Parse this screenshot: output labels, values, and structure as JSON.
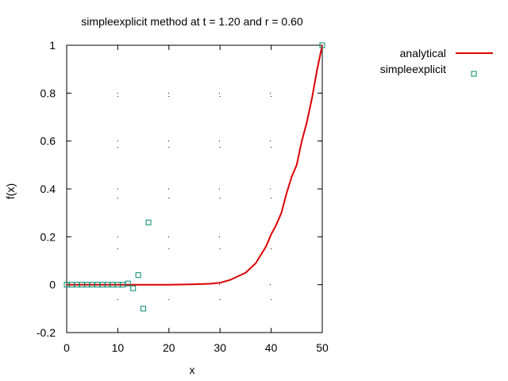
{
  "chart_data": {
    "type": "line",
    "title": "simpleexplicit method at t = 1.20 and r = 0.60",
    "xlabel": "x",
    "ylabel": "f(x)",
    "xlim": [
      0,
      50
    ],
    "ylim": [
      -0.2,
      1
    ],
    "xticks": [
      0,
      10,
      20,
      30,
      40,
      50
    ],
    "yticks": [
      -0.2,
      0,
      0.2,
      0.4,
      0.6,
      0.8,
      1
    ],
    "xtick_labels": [
      "0",
      "10",
      "20",
      "30",
      "40",
      "50"
    ],
    "ytick_labels": [
      "-0.2",
      "0",
      "0.2",
      "0.4",
      "0.6",
      "0.8",
      "1"
    ],
    "grid": true,
    "legend_position": "outside-right-top",
    "series": [
      {
        "name": "analytical",
        "style": "line",
        "color": "#dd0000",
        "x": [
          0,
          5,
          10,
          15,
          20,
          23,
          25,
          28,
          30,
          32,
          34,
          35,
          37,
          39,
          40,
          41,
          42,
          43,
          44,
          45,
          46,
          47,
          48,
          49,
          50
        ],
        "y": [
          0,
          0,
          0,
          0,
          0,
          0.001,
          0.002,
          0.004,
          0.008,
          0.02,
          0.04,
          0.05,
          0.09,
          0.16,
          0.21,
          0.25,
          0.3,
          0.38,
          0.45,
          0.5,
          0.6,
          0.68,
          0.78,
          0.9,
          1.0
        ]
      },
      {
        "name": "simpleexplicit",
        "style": "points",
        "color": "#008b6e",
        "x": [
          0,
          1,
          2,
          3,
          4,
          5,
          6,
          7,
          8,
          9,
          10,
          11,
          12,
          13,
          14,
          15,
          16,
          50
        ],
        "y": [
          0,
          0,
          0,
          0,
          0,
          0,
          0,
          0,
          0,
          0,
          0,
          0,
          0.005,
          -0.015,
          0.04,
          -0.1,
          0.26,
          1.0
        ]
      }
    ]
  }
}
